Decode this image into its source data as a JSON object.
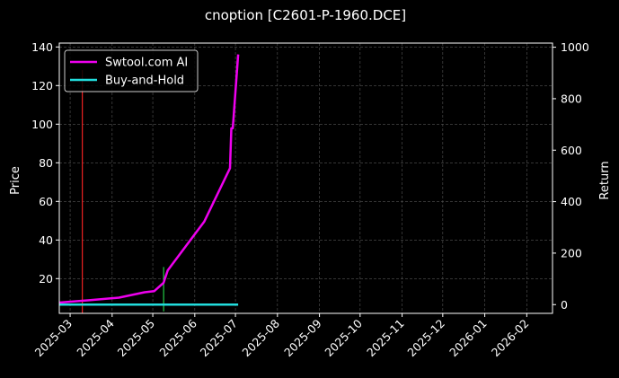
{
  "chart_data": {
    "type": "line",
    "title": "cnoption [C2601-P-1960.DCE]",
    "xlabel": "",
    "ylabel_left": "Price",
    "ylabel_right": "Return",
    "x_ticks": [
      "2025-03",
      "2025-04",
      "2025-05",
      "2025-06",
      "2025-07",
      "2025-08",
      "2025-09",
      "2025-10",
      "2025-11",
      "2025-12",
      "2026-01",
      "2026-02"
    ],
    "x_range": [
      "2025-02-21",
      "2026-02-20"
    ],
    "y_left_ticks": [
      20,
      40,
      60,
      80,
      100,
      120,
      140
    ],
    "y_left_range": [
      2,
      142
    ],
    "y_right_ticks": [
      0,
      200,
      400,
      600,
      800,
      1000
    ],
    "y_right_range": [
      -34,
      1016
    ],
    "grid": true,
    "legend_position": "top-left",
    "series": [
      {
        "name": "Swtool.com AI",
        "axis": "right",
        "color": "#ee00ee",
        "points": [
          {
            "x": "2025-02-21",
            "y": 8
          },
          {
            "x": "2025-03-15",
            "y": 17
          },
          {
            "x": "2025-04-06",
            "y": 27
          },
          {
            "x": "2025-04-25",
            "y": 48
          },
          {
            "x": "2025-05-02",
            "y": 52
          },
          {
            "x": "2025-05-09",
            "y": 85
          },
          {
            "x": "2025-05-12",
            "y": 133
          },
          {
            "x": "2025-06-08",
            "y": 323
          },
          {
            "x": "2025-06-27",
            "y": 530
          },
          {
            "x": "2025-06-28",
            "y": 685
          },
          {
            "x": "2025-06-29",
            "y": 685
          },
          {
            "x": "2025-07-03",
            "y": 972
          }
        ]
      },
      {
        "name": "Buy-and-Hold",
        "axis": "right",
        "color": "#22dddd",
        "points": [
          {
            "x": "2025-02-21",
            "y": 0
          },
          {
            "x": "2025-07-03",
            "y": 0
          }
        ]
      }
    ],
    "markers": [
      {
        "type": "sell",
        "x": "2025-03-10",
        "y_top": 128,
        "y_bottom": 2,
        "color": "#ee2222"
      },
      {
        "type": "buy",
        "x": "2025-05-09",
        "y_top": 26,
        "y_bottom": 3,
        "color": "#22cc44"
      }
    ]
  }
}
